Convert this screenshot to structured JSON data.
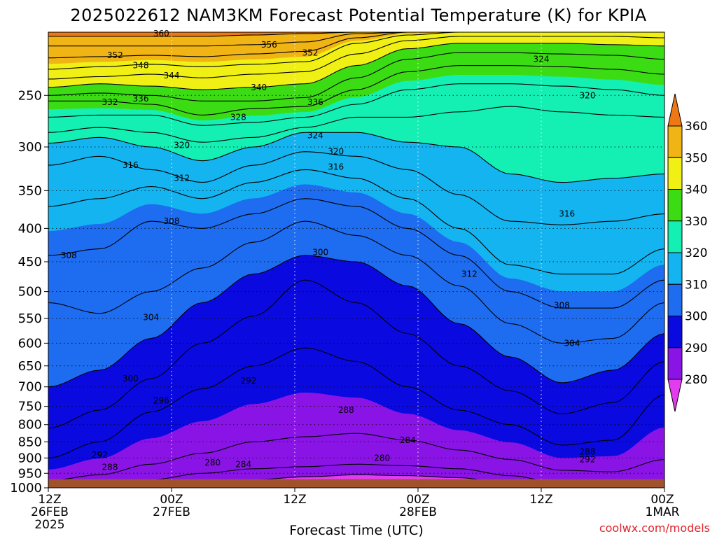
{
  "chart_data": {
    "type": "heatmap",
    "title": "2025022612 NAM3KM Forecast Potential Temperature (K) for KPIA",
    "xlabel": "Forecast Time (UTC)",
    "ylabel": "",
    "credit": "coolwx.com/models",
    "x_ticks": [
      {
        "hour": 0,
        "lines": [
          "12Z",
          "26FEB",
          "2025"
        ]
      },
      {
        "hour": 12,
        "lines": [
          "00Z",
          "27FEB"
        ]
      },
      {
        "hour": 24,
        "lines": [
          "12Z"
        ]
      },
      {
        "hour": 36,
        "lines": [
          "00Z",
          "28FEB"
        ]
      },
      {
        "hour": 48,
        "lines": [
          "12Z"
        ]
      },
      {
        "hour": 60,
        "lines": [
          "00Z",
          "1MAR"
        ]
      }
    ],
    "x_range_hours": [
      0,
      60
    ],
    "y_ticks": [
      250,
      300,
      350,
      400,
      450,
      500,
      550,
      600,
      650,
      700,
      750,
      800,
      850,
      900,
      950,
      1000
    ],
    "y_range_hpa": [
      200,
      1000
    ],
    "y_scale": "log",
    "grid": "dotted",
    "levels": [
      270,
      280,
      290,
      300,
      310,
      320,
      330,
      340,
      350,
      360,
      370
    ],
    "colorbar": {
      "ticks": [
        280,
        290,
        300,
        310,
        320,
        330,
        340,
        350,
        360
      ],
      "colors": [
        "#e23cf0",
        "#8a14e6",
        "#0a0ae0",
        "#1e6cf0",
        "#14b4f0",
        "#14f0b4",
        "#3cdc14",
        "#f0f014",
        "#f0b414",
        "#f07814"
      ],
      "position": "right"
    },
    "surface_color": "#a0522d",
    "surface_pressure_hpa": 970,
    "isentropes": [
      {
        "theta": 280,
        "pressure": [
          1000,
          1000,
          996,
          986,
          972,
          962,
          955,
          958,
          965,
          985,
          998,
          1000,
          1000
        ]
      },
      {
        "theta": 284,
        "pressure": [
          1000,
          990,
          972,
          950,
          935,
          928,
          920,
          925,
          935,
          958,
          985,
          995,
          985
        ]
      },
      {
        "theta": 288,
        "pressure": [
          975,
          955,
          920,
          885,
          850,
          835,
          825,
          845,
          875,
          905,
          940,
          945,
          905
        ]
      },
      {
        "theta": 292,
        "pressure": [
          900,
          850,
          765,
          705,
          650,
          610,
          640,
          700,
          760,
          800,
          860,
          845,
          720
        ]
      },
      {
        "theta": 296,
        "pressure": [
          810,
          760,
          680,
          600,
          545,
          480,
          520,
          580,
          650,
          710,
          770,
          740,
          640
        ]
      },
      {
        "theta": 300,
        "pressure": [
          700,
          660,
          590,
          520,
          470,
          440,
          450,
          490,
          560,
          630,
          690,
          660,
          580
        ]
      },
      {
        "theta": 304,
        "pressure": [
          520,
          540,
          500,
          460,
          420,
          390,
          410,
          440,
          490,
          560,
          600,
          590,
          520
        ]
      },
      {
        "theta": 308,
        "pressure": [
          440,
          430,
          390,
          400,
          380,
          360,
          370,
          400,
          440,
          500,
          530,
          530,
          480
        ]
      },
      {
        "theta": 312,
        "pressure": [
          370,
          360,
          345,
          360,
          340,
          325,
          335,
          360,
          400,
          455,
          470,
          470,
          430
        ]
      },
      {
        "theta": 316,
        "pressure": [
          320,
          310,
          325,
          340,
          320,
          305,
          310,
          325,
          355,
          390,
          395,
          390,
          380
        ]
      },
      {
        "theta": 320,
        "pressure": [
          296,
          290,
          300,
          315,
          300,
          285,
          285,
          295,
          300,
          330,
          340,
          335,
          330
        ]
      },
      {
        "theta": 324,
        "pressure": [
          285,
          280,
          285,
          295,
          290,
          280,
          270,
          270,
          265,
          260,
          265,
          268,
          270
        ]
      },
      {
        "theta": 328,
        "pressure": [
          270,
          268,
          268,
          278,
          275,
          270,
          258,
          245,
          240,
          240,
          242,
          245,
          250
        ]
      },
      {
        "theta": 332,
        "pressure": [
          255,
          255,
          258,
          268,
          262,
          260,
          245,
          230,
          225,
          225,
          226,
          228,
          232
        ]
      },
      {
        "theta": 336,
        "pressure": [
          250,
          248,
          250,
          255,
          255,
          252,
          235,
          220,
          215,
          215,
          216,
          217,
          220
        ]
      },
      {
        "theta": 340,
        "pressure": [
          243,
          240,
          242,
          245,
          243,
          240,
          225,
          212,
          208,
          208,
          208,
          209,
          210
        ]
      },
      {
        "theta": 344,
        "pressure": [
          236,
          234,
          232,
          235,
          232,
          230,
          216,
          206,
          203,
          203,
          203,
          203,
          204
        ]
      },
      {
        "theta": 348,
        "pressure": [
          228,
          226,
          224,
          226,
          224,
          222,
          208,
          202,
          200,
          200,
          200,
          200,
          200
        ]
      },
      {
        "theta": 352,
        "pressure": [
          219,
          218,
          217,
          218,
          216,
          214,
          204,
          200,
          200,
          200,
          200,
          200,
          200
        ]
      },
      {
        "theta": 356,
        "pressure": [
          210,
          210,
          210,
          210,
          209,
          207,
          201,
          200,
          200,
          200,
          200,
          200,
          200
        ]
      },
      {
        "theta": 360,
        "pressure": [
          203,
          203,
          203,
          203,
          202,
          201,
          200,
          200,
          200,
          200,
          200,
          200,
          200
        ]
      }
    ],
    "isentrope_hours": [
      0,
      5,
      10,
      15,
      20,
      25,
      30,
      35,
      40,
      45,
      50,
      55,
      60
    ],
    "contour_labels": [
      {
        "text": "360",
        "hour": 11.0,
        "p": 201
      },
      {
        "text": "356",
        "hour": 21.5,
        "p": 209
      },
      {
        "text": "352",
        "hour": 6.5,
        "p": 217
      },
      {
        "text": "352",
        "hour": 25.5,
        "p": 215
      },
      {
        "text": "348",
        "hour": 9.0,
        "p": 225
      },
      {
        "text": "344",
        "hour": 12.0,
        "p": 233
      },
      {
        "text": "340",
        "hour": 20.5,
        "p": 243
      },
      {
        "text": "336",
        "hour": 9.0,
        "p": 253
      },
      {
        "text": "336",
        "hour": 26.0,
        "p": 256
      },
      {
        "text": "332",
        "hour": 6.0,
        "p": 256
      },
      {
        "text": "328",
        "hour": 18.5,
        "p": 270
      },
      {
        "text": "324",
        "hour": 26.0,
        "p": 288
      },
      {
        "text": "324",
        "hour": 48.0,
        "p": 220
      },
      {
        "text": "320",
        "hour": 13.0,
        "p": 298
      },
      {
        "text": "320",
        "hour": 28.0,
        "p": 305
      },
      {
        "text": "320",
        "hour": 52.5,
        "p": 250
      },
      {
        "text": "316",
        "hour": 8.0,
        "p": 320
      },
      {
        "text": "316",
        "hour": 28.0,
        "p": 322
      },
      {
        "text": "316",
        "hour": 50.5,
        "p": 380
      },
      {
        "text": "312",
        "hour": 13.0,
        "p": 335
      },
      {
        "text": "312",
        "hour": 41.0,
        "p": 470
      },
      {
        "text": "308",
        "hour": 12.0,
        "p": 390
      },
      {
        "text": "308",
        "hour": 2.0,
        "p": 440
      },
      {
        "text": "308",
        "hour": 50.0,
        "p": 525
      },
      {
        "text": "304",
        "hour": 10.0,
        "p": 548
      },
      {
        "text": "304",
        "hour": 51.0,
        "p": 600
      },
      {
        "text": "300",
        "hour": 26.5,
        "p": 435
      },
      {
        "text": "300",
        "hour": 8.0,
        "p": 680
      },
      {
        "text": "296",
        "hour": 11.0,
        "p": 735
      },
      {
        "text": "292",
        "hour": 19.5,
        "p": 685
      },
      {
        "text": "292",
        "hour": 5.0,
        "p": 890
      },
      {
        "text": "292",
        "hour": 52.5,
        "p": 905
      },
      {
        "text": "288",
        "hour": 29.0,
        "p": 760
      },
      {
        "text": "288",
        "hour": 6.0,
        "p": 930
      },
      {
        "text": "288",
        "hour": 52.5,
        "p": 880
      },
      {
        "text": "284",
        "hour": 35.0,
        "p": 845
      },
      {
        "text": "284",
        "hour": 19.0,
        "p": 920
      },
      {
        "text": "280",
        "hour": 16.0,
        "p": 915
      },
      {
        "text": "280",
        "hour": 32.5,
        "p": 900
      }
    ]
  }
}
